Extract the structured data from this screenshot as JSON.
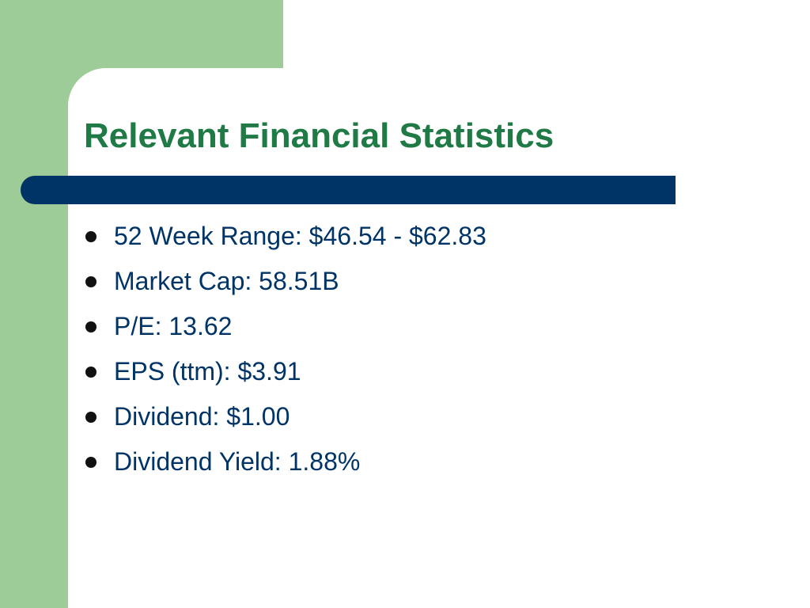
{
  "slide": {
    "title": "Relevant Financial Statistics",
    "bullets": [
      "52 Week Range: $46.54 - $62.83",
      "Market Cap: 58.51B",
      "P/E: 13.62",
      "EPS (ttm): $3.91",
      "Dividend: $1.00",
      "Dividend Yield: 1.88%"
    ]
  },
  "colors": {
    "accent_green": "#9dcc98",
    "title_green": "#1f7a45",
    "navy": "#003366",
    "background": "#ffffff"
  }
}
